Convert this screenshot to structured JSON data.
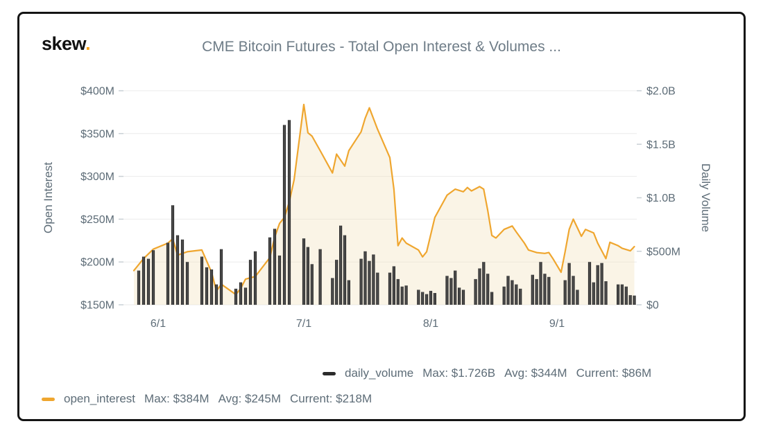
{
  "header": {
    "logo": "skew",
    "logo_dot": ".",
    "title": "CME Bitcoin Futures - Total Open Interest & Volumes ..."
  },
  "colors": {
    "accent_orange": "#efa62f",
    "logo_dot_orange": "#f5a11c",
    "bar_dark": "#2b2b2b",
    "text_gray": "#5d6c77",
    "grid_gray": "#ebebeb",
    "tick_gray": "#c9d0d5",
    "area_fill": "#f3e3bd",
    "card_border": "#141414"
  },
  "legend": {
    "daily_volume": {
      "name": "daily_volume",
      "max": "Max: $1.726B",
      "avg": "Avg: $344M",
      "current": "Current: $86M"
    },
    "open_interest": {
      "name": "open_interest",
      "max": "Max: $384M",
      "avg": "Avg: $245M",
      "current": "Current: $218M"
    }
  },
  "chart_data": {
    "type": "mixed",
    "title": "CME Bitcoin Futures - Total Open Interest & Volumes ...",
    "grid": "horizontal",
    "legend_position": "bottom",
    "x_axis": {
      "tick_labels": [
        "6/1",
        "7/1",
        "8/1",
        "9/1"
      ]
    },
    "left_axis": {
      "title": "Open Interest",
      "unit": "USD millions",
      "range": [
        150,
        400
      ],
      "tick_labels": [
        "$400M",
        "$350M",
        "$300M",
        "$250M",
        "$200M",
        "$150M"
      ],
      "tick_values": [
        400,
        350,
        300,
        250,
        200,
        150
      ]
    },
    "right_axis": {
      "title": "Daily Volume",
      "unit": "USD billions",
      "range": [
        0,
        2.0
      ],
      "tick_labels": [
        "$2.0B",
        "$1.5B",
        "$1.0B",
        "$500M",
        "$0"
      ],
      "tick_values": [
        2.0,
        1.5,
        1.0,
        0.5,
        0
      ]
    },
    "series": [
      {
        "name": "daily_volume",
        "type": "bar",
        "axis": "right",
        "color": "#2b2b2b",
        "stats": {
          "max": "$1.726B",
          "avg": "$344M",
          "current": "$86M"
        },
        "points": [
          [
            "5/28",
            0.32
          ],
          [
            "5/29",
            0.45
          ],
          [
            "5/30",
            0.43
          ],
          [
            "5/31",
            0.51
          ],
          [
            "6/3",
            0.58
          ],
          [
            "6/4",
            0.93
          ],
          [
            "6/5",
            0.65
          ],
          [
            "6/6",
            0.61
          ],
          [
            "6/7",
            0.4
          ],
          [
            "6/10",
            0.45
          ],
          [
            "6/11",
            0.35
          ],
          [
            "6/12",
            0.33
          ],
          [
            "6/13",
            0.19
          ],
          [
            "6/14",
            0.52
          ],
          [
            "6/17",
            0.15
          ],
          [
            "6/18",
            0.21
          ],
          [
            "6/19",
            0.16
          ],
          [
            "6/20",
            0.42
          ],
          [
            "6/21",
            0.5
          ],
          [
            "6/24",
            0.63
          ],
          [
            "6/25",
            0.71
          ],
          [
            "6/26",
            0.46
          ],
          [
            "6/27",
            1.68
          ],
          [
            "6/28",
            1.726
          ],
          [
            "7/1",
            0.62
          ],
          [
            "7/2",
            0.54
          ],
          [
            "7/3",
            0.38
          ],
          [
            "7/5",
            0.52
          ],
          [
            "7/8",
            0.25
          ],
          [
            "7/9",
            0.42
          ],
          [
            "7/10",
            0.74
          ],
          [
            "7/11",
            0.65
          ],
          [
            "7/12",
            0.23
          ],
          [
            "7/15",
            0.43
          ],
          [
            "7/16",
            0.5
          ],
          [
            "7/17",
            0.41
          ],
          [
            "7/18",
            0.47
          ],
          [
            "7/19",
            0.3
          ],
          [
            "7/22",
            0.3
          ],
          [
            "7/23",
            0.36
          ],
          [
            "7/24",
            0.24
          ],
          [
            "7/25",
            0.17
          ],
          [
            "7/26",
            0.18
          ],
          [
            "7/29",
            0.14
          ],
          [
            "7/30",
            0.12
          ],
          [
            "7/31",
            0.1
          ],
          [
            "8/1",
            0.13
          ],
          [
            "8/2",
            0.11
          ],
          [
            "8/5",
            0.27
          ],
          [
            "8/6",
            0.25
          ],
          [
            "8/7",
            0.32
          ],
          [
            "8/8",
            0.16
          ],
          [
            "8/9",
            0.14
          ],
          [
            "8/12",
            0.24
          ],
          [
            "8/13",
            0.34
          ],
          [
            "8/14",
            0.4
          ],
          [
            "8/15",
            0.29
          ],
          [
            "8/16",
            0.12
          ],
          [
            "8/19",
            0.17
          ],
          [
            "8/20",
            0.27
          ],
          [
            "8/21",
            0.23
          ],
          [
            "8/22",
            0.19
          ],
          [
            "8/23",
            0.15
          ],
          [
            "8/26",
            0.28
          ],
          [
            "8/27",
            0.24
          ],
          [
            "8/28",
            0.4
          ],
          [
            "8/29",
            0.29
          ],
          [
            "8/30",
            0.26
          ],
          [
            "9/3",
            0.23
          ],
          [
            "9/4",
            0.39
          ],
          [
            "9/5",
            0.27
          ],
          [
            "9/6",
            0.14
          ],
          [
            "9/9",
            0.4
          ],
          [
            "9/10",
            0.21
          ],
          [
            "9/11",
            0.37
          ],
          [
            "9/12",
            0.39
          ],
          [
            "9/13",
            0.22
          ],
          [
            "9/16",
            0.19
          ],
          [
            "9/17",
            0.19
          ],
          [
            "9/18",
            0.17
          ],
          [
            "9/19",
            0.09
          ],
          [
            "9/20",
            0.086
          ]
        ]
      },
      {
        "name": "open_interest",
        "type": "line",
        "axis": "left",
        "color": "#efa62f",
        "area": true,
        "stats": {
          "max": "$384M",
          "avg": "$245M",
          "current": "$218M"
        },
        "points": [
          [
            "5/27",
            190
          ],
          [
            "5/28",
            197
          ],
          [
            "5/29",
            204
          ],
          [
            "5/31",
            215
          ],
          [
            "6/3",
            222
          ],
          [
            "6/4",
            227
          ],
          [
            "6/5",
            208
          ],
          [
            "6/7",
            212
          ],
          [
            "6/10",
            214
          ],
          [
            "6/12",
            188
          ],
          [
            "6/13",
            166
          ],
          [
            "6/14",
            174
          ],
          [
            "6/17",
            162
          ],
          [
            "6/18",
            169
          ],
          [
            "6/19",
            180
          ],
          [
            "6/21",
            183
          ],
          [
            "6/24",
            205
          ],
          [
            "6/25",
            229
          ],
          [
            "6/26",
            245
          ],
          [
            "6/27",
            252
          ],
          [
            "6/28",
            270
          ],
          [
            "6/29",
            296
          ],
          [
            "6/30",
            340
          ],
          [
            "7/1",
            384
          ],
          [
            "7/2",
            351
          ],
          [
            "7/3",
            347
          ],
          [
            "7/5",
            330
          ],
          [
            "7/8",
            304
          ],
          [
            "7/9",
            326
          ],
          [
            "7/11",
            312
          ],
          [
            "7/12",
            330
          ],
          [
            "7/15",
            352
          ],
          [
            "7/16",
            368
          ],
          [
            "7/17",
            380
          ],
          [
            "7/19",
            355
          ],
          [
            "7/22",
            322
          ],
          [
            "7/23",
            285
          ],
          [
            "7/24",
            219
          ],
          [
            "7/25",
            228
          ],
          [
            "7/26",
            222
          ],
          [
            "7/29",
            214
          ],
          [
            "7/30",
            206
          ],
          [
            "7/31",
            212
          ],
          [
            "8/2",
            252
          ],
          [
            "8/5",
            278
          ],
          [
            "8/7",
            285
          ],
          [
            "8/9",
            282
          ],
          [
            "8/10",
            287
          ],
          [
            "8/11",
            283
          ],
          [
            "8/13",
            288
          ],
          [
            "8/14",
            285
          ],
          [
            "8/15",
            260
          ],
          [
            "8/16",
            231
          ],
          [
            "8/17",
            228
          ],
          [
            "8/19",
            238
          ],
          [
            "8/21",
            242
          ],
          [
            "8/22",
            235
          ],
          [
            "8/24",
            222
          ],
          [
            "8/25",
            214
          ],
          [
            "8/27",
            211
          ],
          [
            "8/29",
            210
          ],
          [
            "8/30",
            211
          ],
          [
            "8/31",
            204
          ],
          [
            "9/2",
            188
          ],
          [
            "9/3",
            212
          ],
          [
            "9/4",
            238
          ],
          [
            "9/5",
            250
          ],
          [
            "9/7",
            230
          ],
          [
            "9/8",
            238
          ],
          [
            "9/10",
            234
          ],
          [
            "9/11",
            222
          ],
          [
            "9/13",
            204
          ],
          [
            "9/14",
            223
          ],
          [
            "9/16",
            219
          ],
          [
            "9/17",
            216
          ],
          [
            "9/19",
            213
          ],
          [
            "9/20",
            218
          ]
        ]
      }
    ]
  }
}
